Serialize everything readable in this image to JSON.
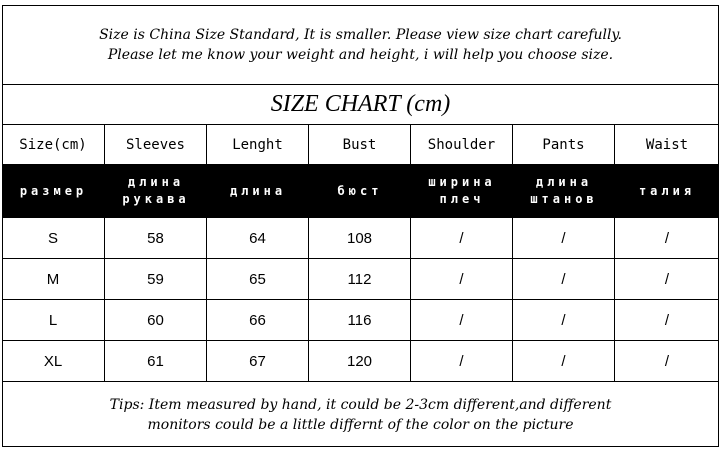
{
  "note": {
    "line1": "Size is China Size Standard, It is smaller. Please view size chart carefully.",
    "line2": "Please let me know your weight and height, i will help you choose size."
  },
  "title": "SIZE CHART (cm)",
  "headers": [
    "Size(cm)",
    "Sleeves",
    "Lenght",
    "Bust",
    "Shoulder",
    "Pants",
    "Waist"
  ],
  "headers_ru": [
    "размер",
    "длина\nрукава",
    "длина",
    "бюст",
    "ширина\nплеч",
    "длина\nштанов",
    "талия"
  ],
  "rows": [
    [
      "S",
      "58",
      "64",
      "108",
      "/",
      "/",
      "/"
    ],
    [
      "M",
      "59",
      "65",
      "112",
      "/",
      "/",
      "/"
    ],
    [
      "L",
      "60",
      "66",
      "116",
      "/",
      "/",
      "/"
    ],
    [
      "XL",
      "61",
      "67",
      "120",
      "/",
      "/",
      "/"
    ]
  ],
  "tips": {
    "line1": "Tips: Item measured by hand, it could be 2-3cm different,and different",
    "line2": "monitors could be a little differnt of the color on the picture"
  }
}
